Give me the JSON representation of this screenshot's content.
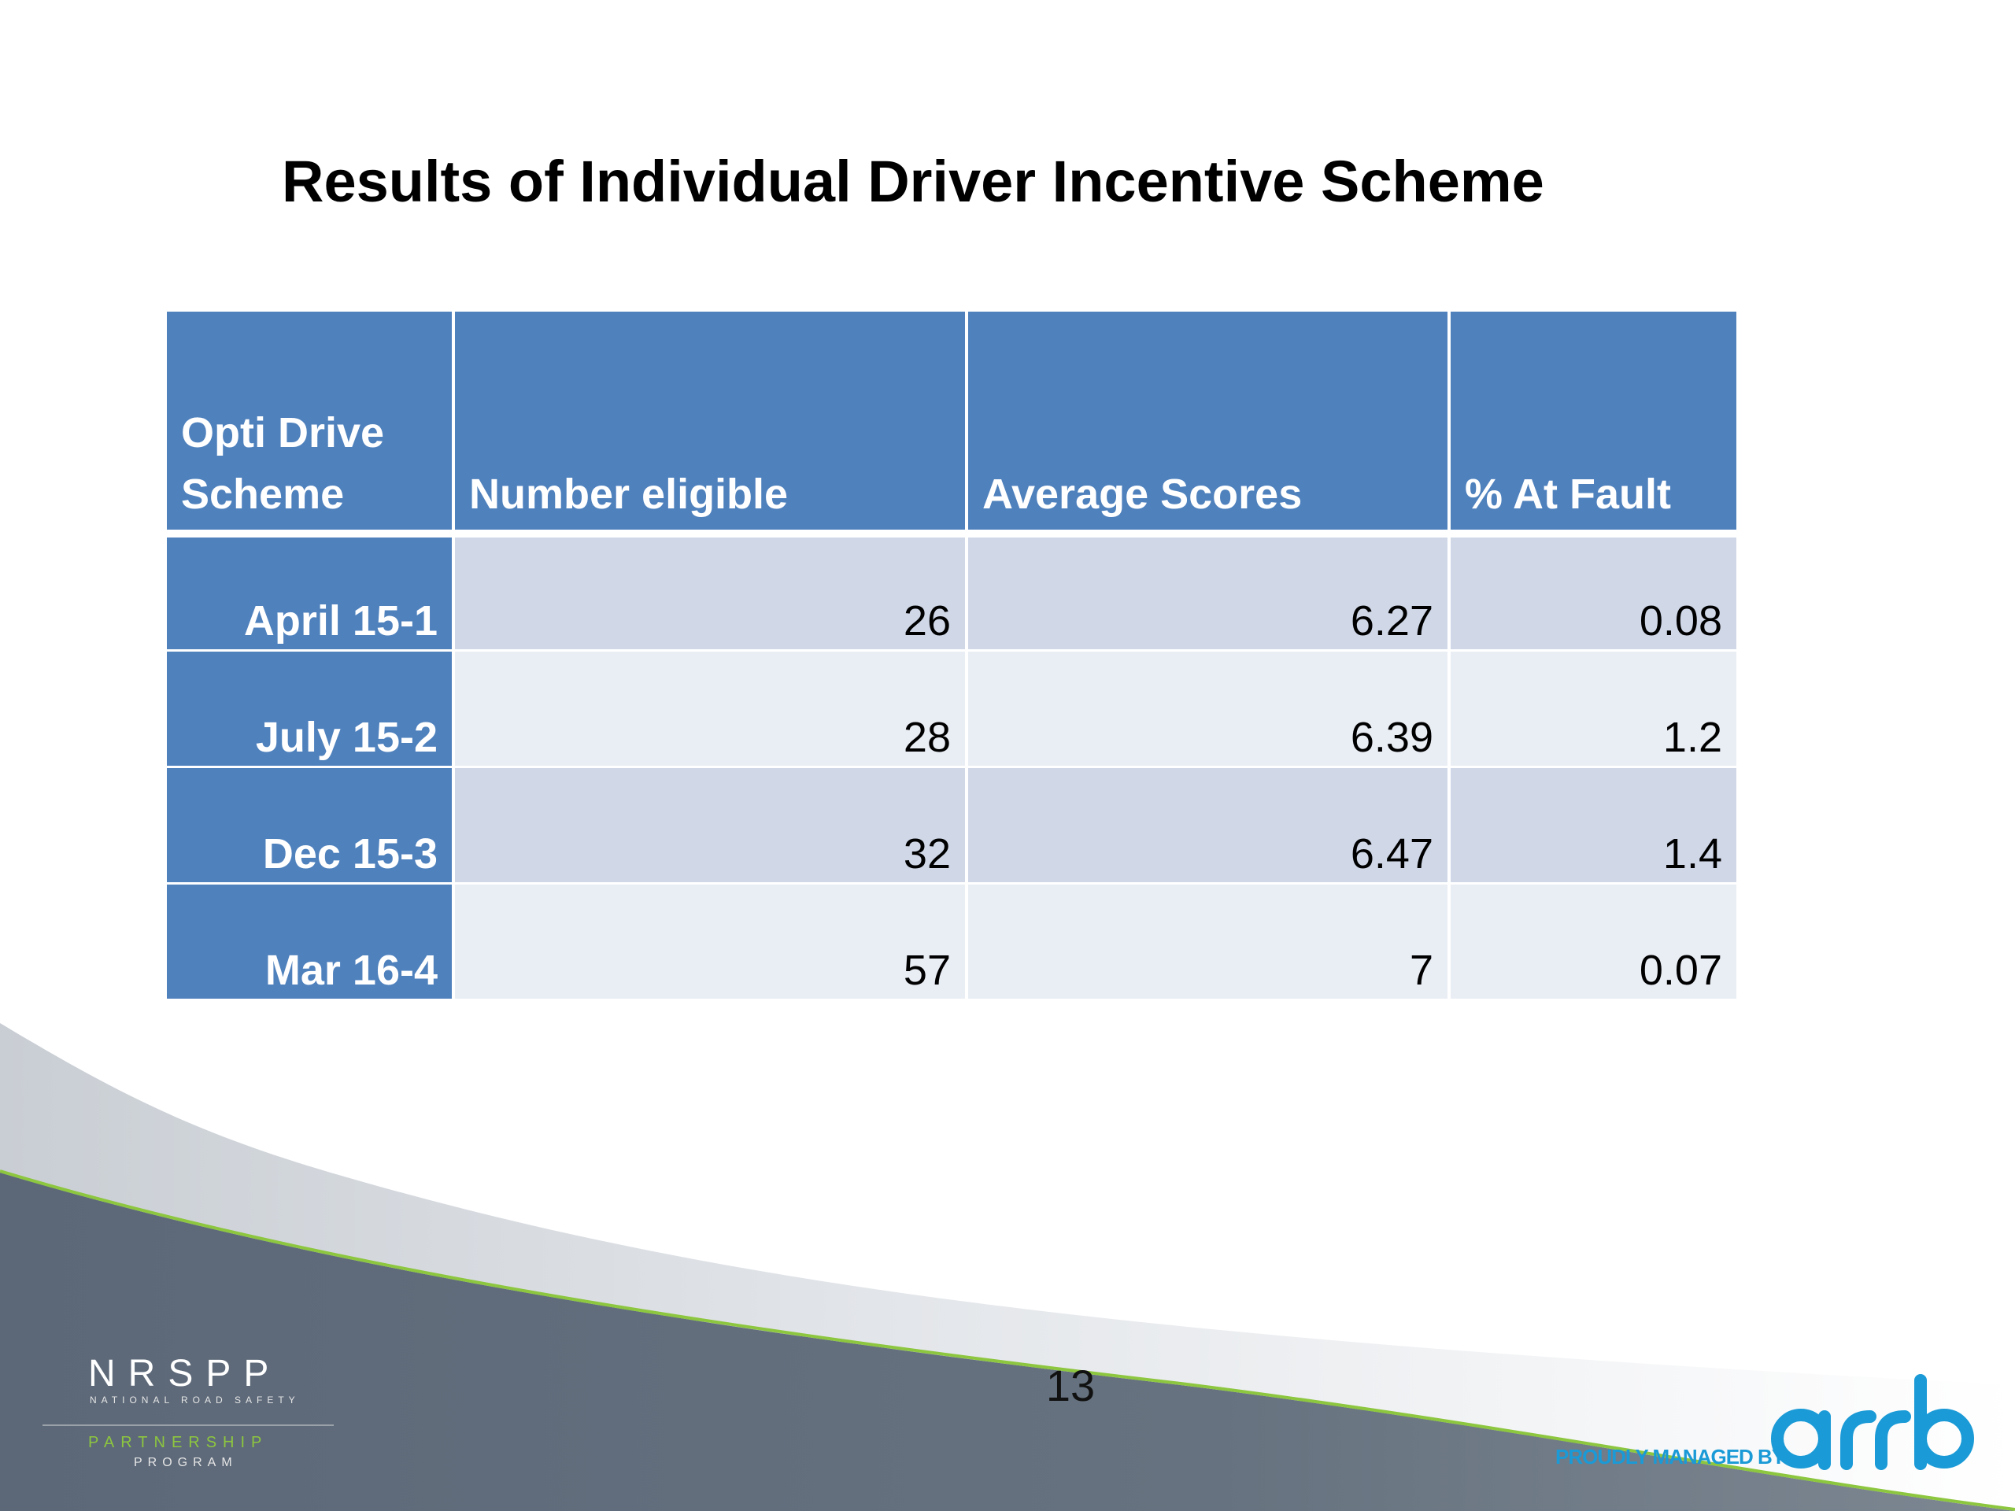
{
  "slide": {
    "title": "Results of Individual Driver Incentive Scheme",
    "page_number": "13"
  },
  "table": {
    "columns": [
      "Opti Drive Scheme",
      "Number eligible",
      "Average Scores",
      "% At Fault"
    ],
    "rows": [
      {
        "scheme": "April 15-1",
        "number_eligible": "26",
        "average_scores": "6.27",
        "pct_at_fault": "0.08"
      },
      {
        "scheme": "July 15-2",
        "number_eligible": "28",
        "average_scores": "6.39",
        "pct_at_fault": "1.2"
      },
      {
        "scheme": "Dec 15-3",
        "number_eligible": "32",
        "average_scores": "6.47",
        "pct_at_fault": "1.4"
      },
      {
        "scheme": "Mar 16-4",
        "number_eligible": "57",
        "average_scores": "7",
        "pct_at_fault": "0.07"
      }
    ]
  },
  "footer": {
    "nrspp_logo": {
      "main": "NRSPP",
      "sub": "NATIONAL ROAD SAFETY",
      "partner": "PARTNERSHIP",
      "program": "PROGRAM"
    },
    "managed_by": "PROUDLY MANAGED BY",
    "arrb_logo": "arrb"
  },
  "colors": {
    "header_blue": "#4f81bd",
    "row_band_dark": "#d0d8e8",
    "row_band_light": "#e9edf4",
    "footer_gray": "#5f6b7a",
    "accent_green": "#8dc63f",
    "arrb_blue": "#1a9ad6"
  }
}
